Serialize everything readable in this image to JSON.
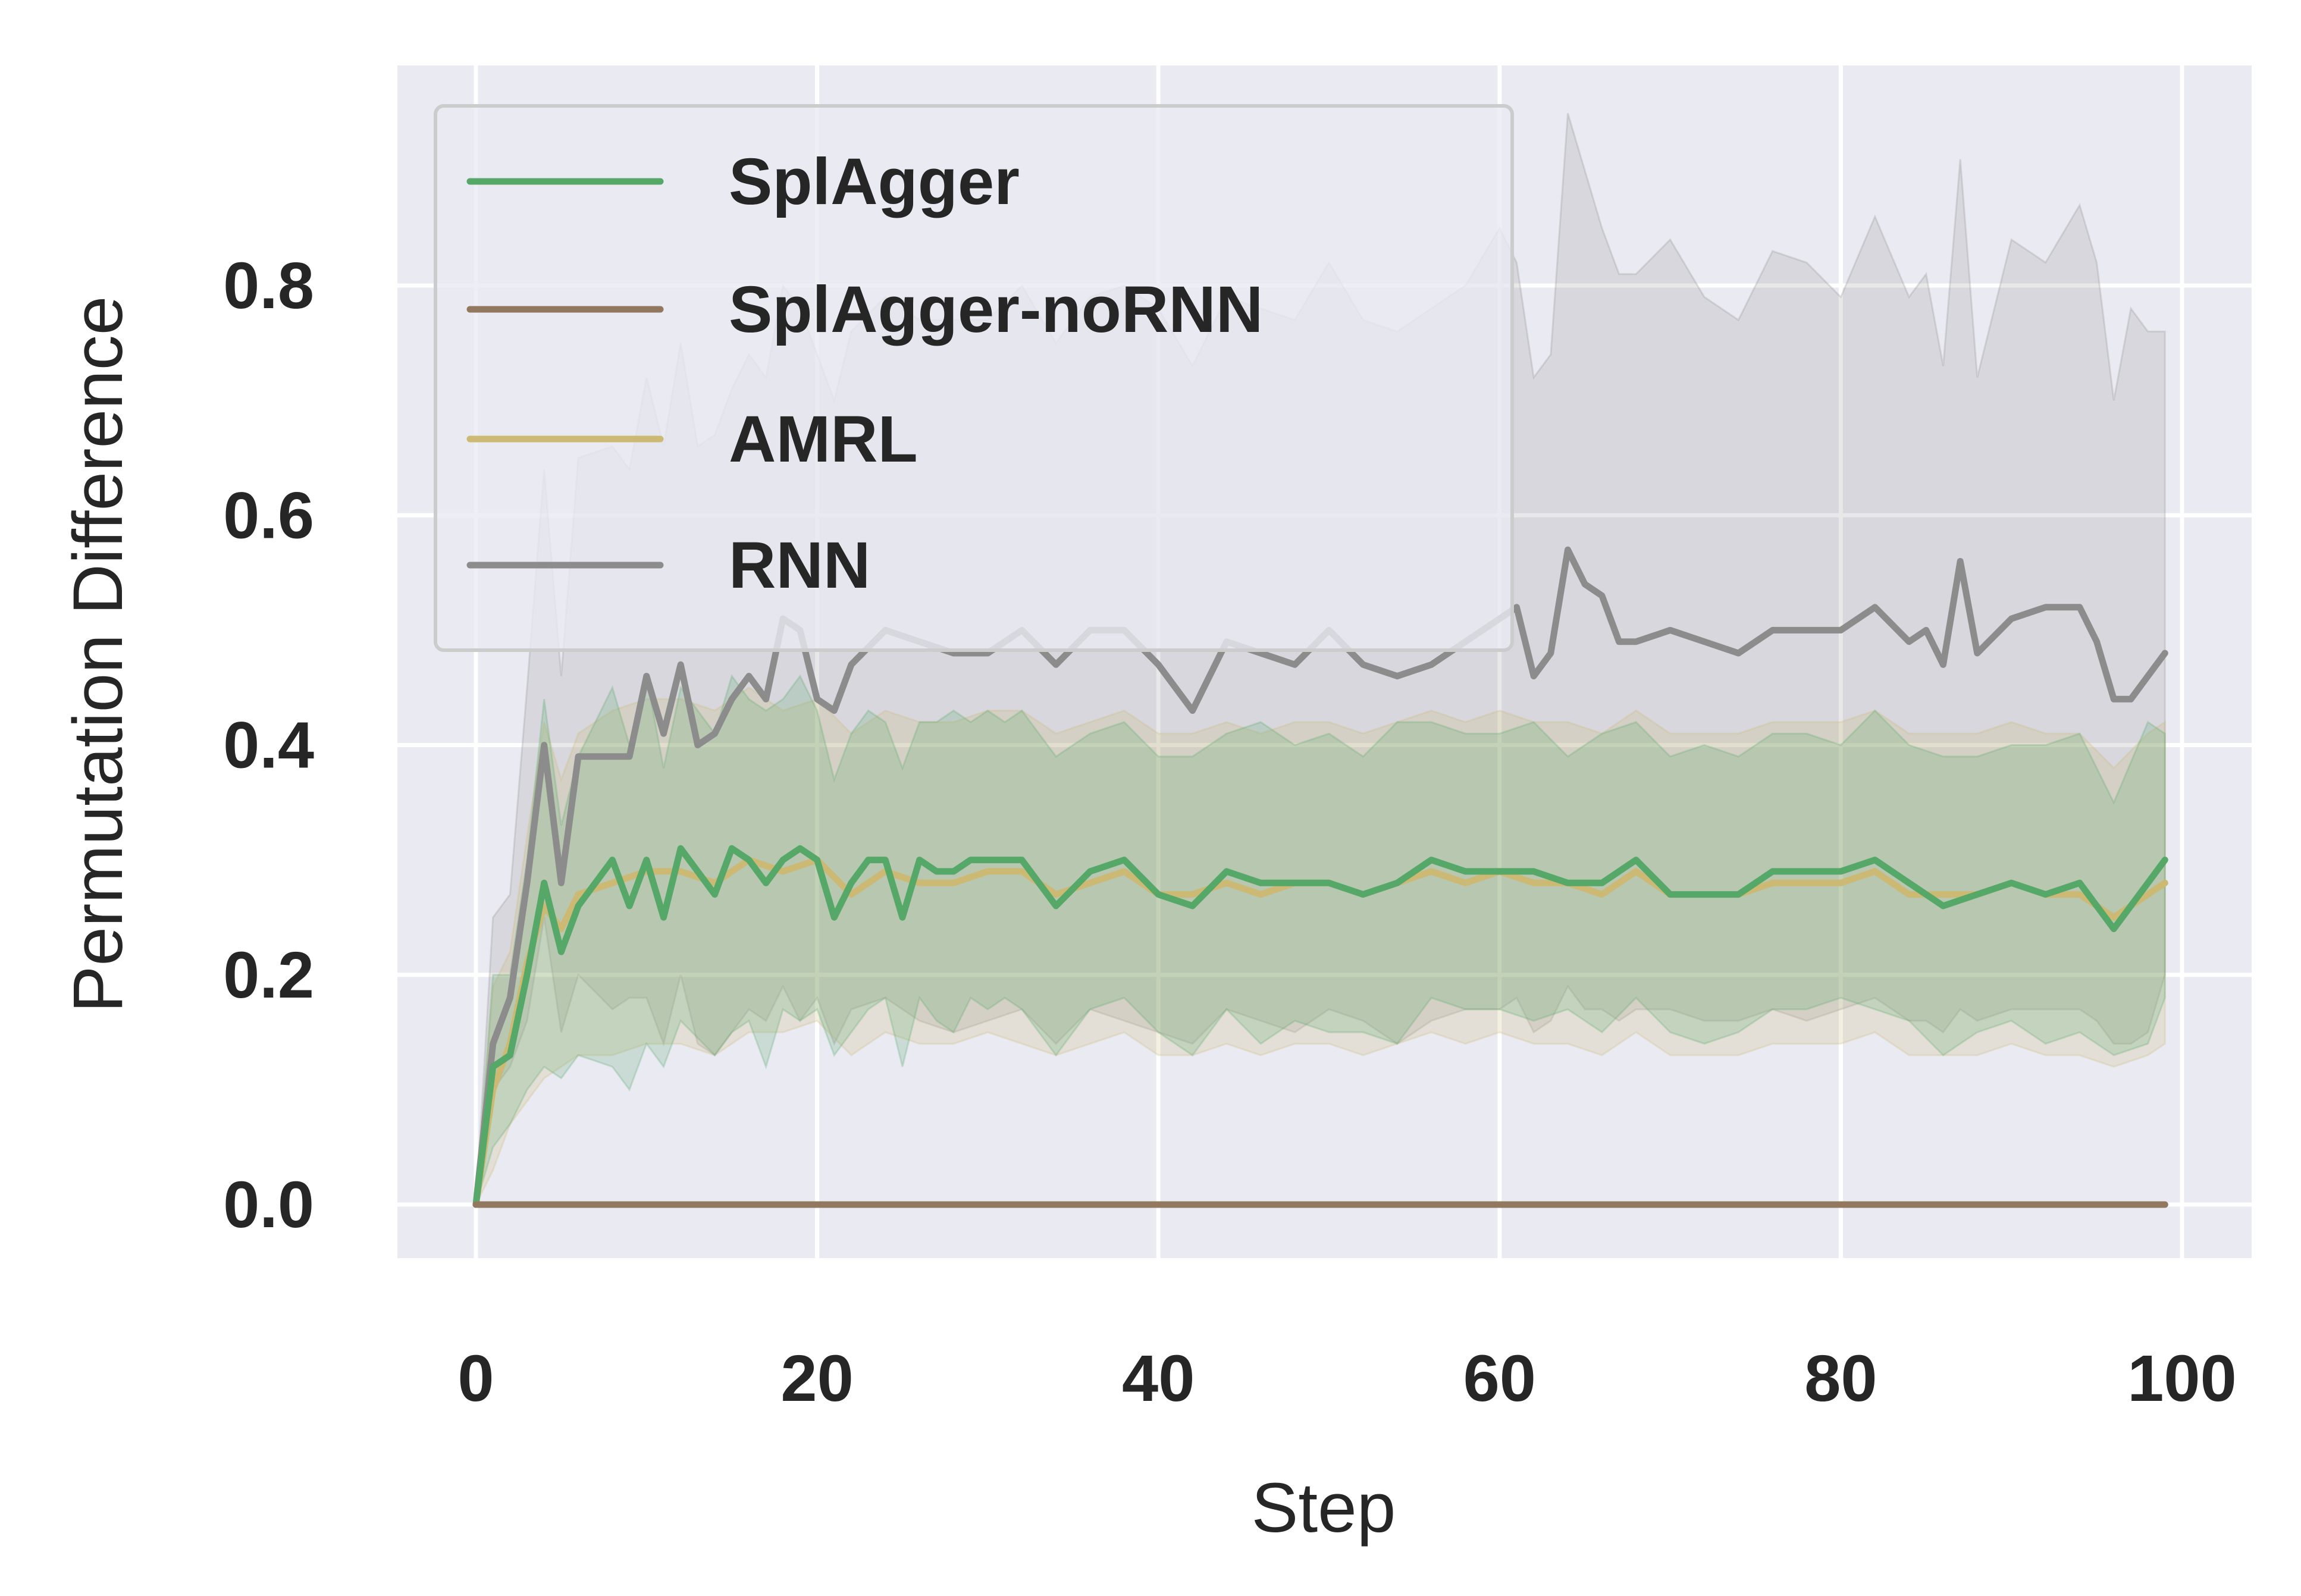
{
  "chart_data": {
    "type": "line",
    "title": "",
    "xlabel": "Step",
    "ylabel": "Permutation Difference",
    "xlim": [
      -4.5,
      103.5
    ],
    "ylim": [
      -0.04,
      0.995
    ],
    "x_ticks": [
      0,
      20,
      40,
      60,
      80,
      100
    ],
    "x_tick_labels": [
      "0",
      "20",
      "40",
      "60",
      "80",
      "100"
    ],
    "y_ticks": [
      0.0,
      0.2,
      0.4,
      0.6,
      0.8
    ],
    "y_tick_labels": [
      "0.0",
      "0.2",
      "0.4",
      "0.6",
      "0.8"
    ],
    "grid": true,
    "background": "#eaeaf2",
    "legend_position": "upper-left",
    "series": [
      {
        "name": "SplAgger",
        "color": "#55a868",
        "x": [
          0,
          1,
          2,
          3,
          4,
          5,
          6,
          8,
          9,
          10,
          11,
          12,
          14,
          15,
          16,
          17,
          18,
          19,
          20,
          21,
          22,
          23,
          24,
          25,
          26,
          27,
          28,
          29,
          30,
          31,
          32,
          34,
          36,
          38,
          40,
          42,
          44,
          46,
          48,
          50,
          52,
          54,
          56,
          58,
          60,
          62,
          64,
          66,
          68,
          70,
          72,
          74,
          76,
          78,
          80,
          82,
          84,
          86,
          88,
          90,
          92,
          94,
          96,
          98,
          99
        ],
        "y": [
          0.0,
          0.12,
          0.13,
          0.2,
          0.28,
          0.22,
          0.26,
          0.3,
          0.26,
          0.3,
          0.25,
          0.31,
          0.27,
          0.31,
          0.3,
          0.28,
          0.3,
          0.31,
          0.3,
          0.25,
          0.28,
          0.3,
          0.3,
          0.25,
          0.3,
          0.29,
          0.29,
          0.3,
          0.3,
          0.3,
          0.3,
          0.26,
          0.29,
          0.3,
          0.27,
          0.26,
          0.29,
          0.28,
          0.28,
          0.28,
          0.27,
          0.28,
          0.3,
          0.29,
          0.29,
          0.29,
          0.28,
          0.28,
          0.3,
          0.27,
          0.27,
          0.27,
          0.29,
          0.29,
          0.29,
          0.3,
          0.28,
          0.26,
          0.27,
          0.28,
          0.27,
          0.28,
          0.24,
          0.28,
          0.3
        ],
        "band_low": [
          0.0,
          0.05,
          0.07,
          0.1,
          0.12,
          0.11,
          0.13,
          0.12,
          0.1,
          0.14,
          0.12,
          0.16,
          0.13,
          0.15,
          0.16,
          0.12,
          0.17,
          0.16,
          0.17,
          0.13,
          0.15,
          0.17,
          0.18,
          0.12,
          0.18,
          0.16,
          0.15,
          0.18,
          0.17,
          0.18,
          0.17,
          0.13,
          0.17,
          0.18,
          0.15,
          0.13,
          0.17,
          0.14,
          0.16,
          0.15,
          0.15,
          0.14,
          0.18,
          0.17,
          0.17,
          0.16,
          0.17,
          0.15,
          0.18,
          0.15,
          0.14,
          0.15,
          0.17,
          0.17,
          0.18,
          0.17,
          0.16,
          0.13,
          0.15,
          0.16,
          0.14,
          0.15,
          0.13,
          0.14,
          0.18
        ],
        "band_high": [
          0.0,
          0.2,
          0.2,
          0.3,
          0.44,
          0.33,
          0.39,
          0.45,
          0.4,
          0.46,
          0.38,
          0.45,
          0.41,
          0.46,
          0.44,
          0.43,
          0.44,
          0.46,
          0.43,
          0.37,
          0.41,
          0.43,
          0.42,
          0.38,
          0.42,
          0.42,
          0.43,
          0.42,
          0.43,
          0.42,
          0.43,
          0.39,
          0.41,
          0.42,
          0.39,
          0.39,
          0.41,
          0.42,
          0.4,
          0.41,
          0.39,
          0.42,
          0.42,
          0.41,
          0.41,
          0.42,
          0.39,
          0.41,
          0.42,
          0.39,
          0.4,
          0.39,
          0.41,
          0.41,
          0.4,
          0.43,
          0.4,
          0.39,
          0.39,
          0.4,
          0.4,
          0.41,
          0.35,
          0.42,
          0.41
        ]
      },
      {
        "name": "SplAgger-noRNN",
        "color": "#937860",
        "x": [
          0,
          99
        ],
        "y": [
          0.0,
          0.0
        ]
      },
      {
        "name": "AMRL",
        "color": "#ccb974",
        "x": [
          0,
          1,
          2,
          3,
          4,
          5,
          6,
          8,
          10,
          12,
          14,
          16,
          18,
          20,
          22,
          24,
          26,
          28,
          30,
          32,
          34,
          36,
          38,
          40,
          42,
          44,
          46,
          48,
          50,
          52,
          54,
          56,
          58,
          60,
          62,
          64,
          66,
          68,
          70,
          72,
          74,
          76,
          78,
          80,
          82,
          84,
          86,
          88,
          90,
          92,
          94,
          96,
          98,
          99
        ],
        "y": [
          0.0,
          0.1,
          0.14,
          0.21,
          0.26,
          0.24,
          0.27,
          0.28,
          0.29,
          0.29,
          0.28,
          0.3,
          0.29,
          0.3,
          0.27,
          0.29,
          0.28,
          0.28,
          0.29,
          0.29,
          0.27,
          0.28,
          0.29,
          0.27,
          0.27,
          0.28,
          0.27,
          0.28,
          0.28,
          0.27,
          0.28,
          0.29,
          0.28,
          0.29,
          0.28,
          0.28,
          0.27,
          0.29,
          0.27,
          0.27,
          0.27,
          0.28,
          0.28,
          0.28,
          0.29,
          0.27,
          0.27,
          0.27,
          0.28,
          0.27,
          0.27,
          0.25,
          0.27,
          0.28
        ],
        "band_low": [
          0.0,
          0.03,
          0.07,
          0.09,
          0.11,
          0.12,
          0.13,
          0.13,
          0.14,
          0.14,
          0.13,
          0.15,
          0.15,
          0.16,
          0.13,
          0.15,
          0.14,
          0.14,
          0.15,
          0.14,
          0.13,
          0.14,
          0.15,
          0.13,
          0.13,
          0.14,
          0.13,
          0.14,
          0.14,
          0.13,
          0.14,
          0.15,
          0.14,
          0.15,
          0.14,
          0.14,
          0.13,
          0.15,
          0.13,
          0.13,
          0.13,
          0.14,
          0.14,
          0.14,
          0.15,
          0.13,
          0.13,
          0.13,
          0.14,
          0.13,
          0.13,
          0.12,
          0.13,
          0.14
        ],
        "band_high": [
          0.0,
          0.19,
          0.22,
          0.32,
          0.42,
          0.37,
          0.41,
          0.43,
          0.44,
          0.44,
          0.43,
          0.45,
          0.43,
          0.44,
          0.41,
          0.43,
          0.42,
          0.42,
          0.43,
          0.43,
          0.41,
          0.42,
          0.43,
          0.41,
          0.41,
          0.42,
          0.41,
          0.42,
          0.42,
          0.41,
          0.42,
          0.43,
          0.42,
          0.43,
          0.42,
          0.42,
          0.41,
          0.43,
          0.41,
          0.41,
          0.41,
          0.42,
          0.42,
          0.42,
          0.43,
          0.41,
          0.41,
          0.41,
          0.42,
          0.41,
          0.41,
          0.38,
          0.41,
          0.42
        ]
      },
      {
        "name": "RNN",
        "color": "#8c8c8c",
        "x": [
          0,
          1,
          2,
          3,
          4,
          5,
          6,
          8,
          9,
          10,
          11,
          12,
          13,
          14,
          15,
          16,
          17,
          18,
          19,
          20,
          21,
          22,
          24,
          26,
          28,
          30,
          32,
          34,
          36,
          38,
          40,
          42,
          44,
          46,
          48,
          50,
          52,
          54,
          56,
          58,
          60,
          61,
          62,
          63,
          64,
          65,
          66,
          67,
          68,
          70,
          72,
          74,
          76,
          78,
          80,
          82,
          84,
          85,
          86,
          87,
          88,
          90,
          92,
          94,
          95,
          96,
          97,
          98,
          99
        ],
        "y": [
          0.0,
          0.14,
          0.18,
          0.28,
          0.4,
          0.28,
          0.39,
          0.39,
          0.39,
          0.46,
          0.41,
          0.47,
          0.4,
          0.41,
          0.44,
          0.46,
          0.44,
          0.51,
          0.5,
          0.44,
          0.43,
          0.47,
          0.5,
          0.49,
          0.48,
          0.48,
          0.5,
          0.47,
          0.5,
          0.5,
          0.47,
          0.43,
          0.49,
          0.48,
          0.47,
          0.5,
          0.47,
          0.46,
          0.47,
          0.49,
          0.51,
          0.52,
          0.46,
          0.48,
          0.57,
          0.54,
          0.53,
          0.49,
          0.49,
          0.5,
          0.49,
          0.48,
          0.5,
          0.5,
          0.5,
          0.52,
          0.49,
          0.5,
          0.47,
          0.56,
          0.48,
          0.51,
          0.52,
          0.52,
          0.49,
          0.44,
          0.44,
          0.46,
          0.48
        ],
        "band_low": [
          0.0,
          0.1,
          0.12,
          0.16,
          0.25,
          0.15,
          0.2,
          0.17,
          0.18,
          0.18,
          0.14,
          0.2,
          0.14,
          0.13,
          0.15,
          0.17,
          0.16,
          0.19,
          0.16,
          0.18,
          0.14,
          0.17,
          0.18,
          0.16,
          0.15,
          0.16,
          0.17,
          0.14,
          0.17,
          0.16,
          0.15,
          0.14,
          0.17,
          0.16,
          0.15,
          0.17,
          0.16,
          0.14,
          0.16,
          0.17,
          0.17,
          0.18,
          0.15,
          0.16,
          0.19,
          0.17,
          0.17,
          0.16,
          0.17,
          0.17,
          0.16,
          0.16,
          0.17,
          0.16,
          0.17,
          0.18,
          0.16,
          0.16,
          0.15,
          0.17,
          0.16,
          0.17,
          0.17,
          0.17,
          0.16,
          0.14,
          0.14,
          0.15,
          0.2
        ],
        "band_high": [
          0.0,
          0.25,
          0.27,
          0.45,
          0.64,
          0.46,
          0.65,
          0.66,
          0.64,
          0.72,
          0.66,
          0.75,
          0.66,
          0.67,
          0.71,
          0.74,
          0.72,
          0.8,
          0.78,
          0.74,
          0.7,
          0.76,
          0.79,
          0.77,
          0.77,
          0.77,
          0.8,
          0.75,
          0.79,
          0.8,
          0.78,
          0.73,
          0.79,
          0.78,
          0.77,
          0.82,
          0.77,
          0.76,
          0.78,
          0.8,
          0.85,
          0.82,
          0.72,
          0.74,
          0.95,
          0.9,
          0.85,
          0.81,
          0.81,
          0.84,
          0.79,
          0.77,
          0.83,
          0.82,
          0.79,
          0.86,
          0.79,
          0.81,
          0.73,
          0.91,
          0.72,
          0.84,
          0.82,
          0.87,
          0.82,
          0.7,
          0.78,
          0.76,
          0.76
        ]
      }
    ]
  }
}
